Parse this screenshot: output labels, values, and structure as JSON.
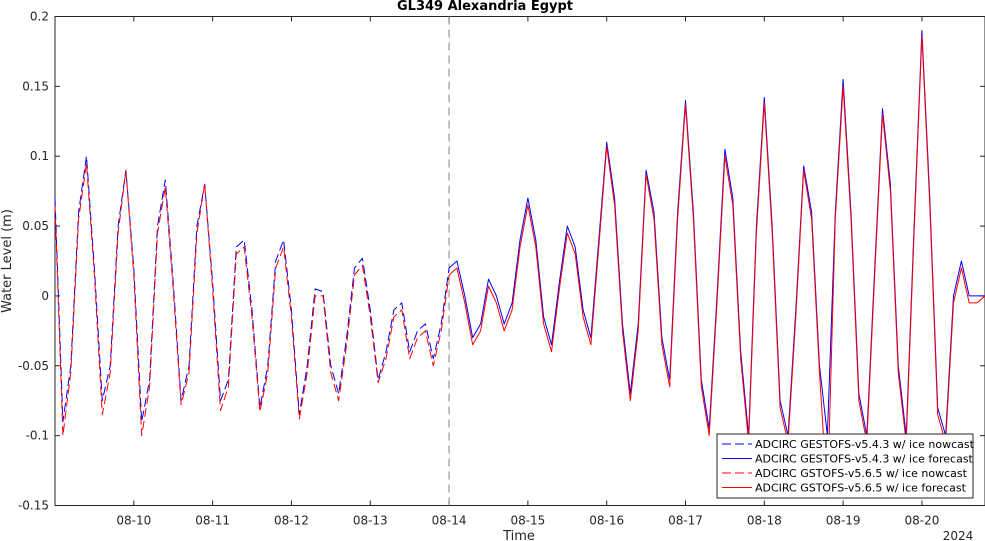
{
  "chart_data": {
    "type": "line",
    "title": "GL349 Alexandria Egypt",
    "xlabel": "Time",
    "ylabel": "Water Level (m)",
    "year_label": "2024",
    "xlim_days": [
      9.0,
      20.8
    ],
    "ylim": [
      -0.15,
      0.2
    ],
    "x_ticks": [
      {
        "day": 10,
        "label": "08-10"
      },
      {
        "day": 11,
        "label": "08-11"
      },
      {
        "day": 12,
        "label": "08-12"
      },
      {
        "day": 13,
        "label": "08-13"
      },
      {
        "day": 14,
        "label": "08-14"
      },
      {
        "day": 15,
        "label": "08-15"
      },
      {
        "day": 16,
        "label": "08-16"
      },
      {
        "day": 17,
        "label": "08-17"
      },
      {
        "day": 18,
        "label": "08-18"
      },
      {
        "day": 19,
        "label": "08-19"
      },
      {
        "day": 20,
        "label": "08-20"
      }
    ],
    "y_ticks": [
      {
        "value": 0.2,
        "label": "0.2"
      },
      {
        "value": 0.15,
        "label": "0.15"
      },
      {
        "value": 0.1,
        "label": "0.1"
      },
      {
        "value": 0.05,
        "label": "0.05"
      },
      {
        "value": 0,
        "label": "0"
      },
      {
        "value": -0.05,
        "label": "-0.05"
      },
      {
        "value": -0.1,
        "label": "-0.1"
      },
      {
        "value": -0.15,
        "label": "-0.15"
      }
    ],
    "nowcast_forecast_divider_day": 14.0,
    "grid": false,
    "legend_position": "bottom-right",
    "series": [
      {
        "name": "ADCIRC GESTOFS-v5.4.3 w/ ice nowcast",
        "color": "#0000ff",
        "style": "dashed",
        "x": [
          9.0,
          9.1,
          9.2,
          9.3,
          9.4,
          9.5,
          9.6,
          9.7,
          9.8,
          9.9,
          10.0,
          10.1,
          10.2,
          10.3,
          10.4,
          10.5,
          10.6,
          10.7,
          10.8,
          10.9,
          11.0,
          11.1,
          11.2,
          11.3,
          11.4,
          11.5,
          11.6,
          11.7,
          11.8,
          11.9,
          12.0,
          12.1,
          12.2,
          12.3,
          12.4,
          12.5,
          12.6,
          12.7,
          12.8,
          12.9,
          13.0,
          13.1,
          13.2,
          13.3,
          13.4,
          13.5,
          13.6,
          13.7,
          13.8,
          13.9,
          14.0
        ],
        "y": [
          0.07,
          -0.09,
          -0.05,
          0.06,
          0.1,
          0.02,
          -0.075,
          -0.05,
          0.05,
          0.09,
          0.02,
          -0.09,
          -0.06,
          0.05,
          0.083,
          0.01,
          -0.075,
          -0.05,
          0.05,
          0.08,
          0.01,
          -0.075,
          -0.06,
          0.035,
          0.04,
          -0.01,
          -0.08,
          -0.05,
          0.025,
          0.04,
          -0.01,
          -0.085,
          -0.05,
          0.005,
          0.003,
          -0.05,
          -0.07,
          -0.03,
          0.02,
          0.027,
          -0.01,
          -0.06,
          -0.04,
          -0.01,
          -0.005,
          -0.04,
          -0.025,
          -0.02,
          -0.045,
          -0.02,
          0.02
        ]
      },
      {
        "name": "ADCIRC GESTOFS-v5.4.3 w/ ice forecast",
        "color": "#0000ff",
        "style": "solid",
        "x": [
          14.0,
          14.1,
          14.2,
          14.3,
          14.4,
          14.5,
          14.6,
          14.7,
          14.8,
          14.9,
          15.0,
          15.1,
          15.2,
          15.3,
          15.4,
          15.5,
          15.6,
          15.7,
          15.8,
          15.9,
          16.0,
          16.1,
          16.2,
          16.3,
          16.4,
          16.5,
          16.6,
          16.7,
          16.8,
          16.9,
          17.0,
          17.1,
          17.2,
          17.3,
          17.4,
          17.5,
          17.6,
          17.7,
          17.8,
          17.9,
          18.0,
          18.1,
          18.2,
          18.3,
          18.4,
          18.5,
          18.6,
          18.7,
          18.8,
          18.9,
          19.0,
          19.1,
          19.2,
          19.3,
          19.4,
          19.5,
          19.6,
          19.7,
          19.8,
          19.9,
          20.0,
          20.1,
          20.2,
          20.3,
          20.4,
          20.5,
          20.6,
          20.7,
          20.8
        ],
        "y": [
          0.02,
          0.025,
          0.0,
          -0.03,
          -0.02,
          0.012,
          0.0,
          -0.02,
          -0.005,
          0.04,
          0.07,
          0.04,
          -0.015,
          -0.035,
          0.01,
          0.05,
          0.035,
          -0.01,
          -0.03,
          0.04,
          0.11,
          0.07,
          -0.02,
          -0.07,
          -0.02,
          0.09,
          0.06,
          -0.03,
          -0.06,
          0.06,
          0.14,
          0.06,
          -0.06,
          -0.095,
          0.0,
          0.105,
          0.07,
          -0.04,
          -0.1,
          0.05,
          0.142,
          0.05,
          -0.075,
          -0.1,
          -0.01,
          0.093,
          0.06,
          -0.05,
          -0.1,
          0.06,
          0.155,
          0.06,
          -0.07,
          -0.1,
          0.02,
          0.134,
          0.08,
          -0.05,
          -0.1,
          0.05,
          0.19,
          0.07,
          -0.08,
          -0.1,
          0.0,
          0.025,
          0.0,
          0.0,
          0.0
        ]
      },
      {
        "name": "ADCIRC GSTOFS-v5.6.5 w/ ice nowcast",
        "color": "#ff0000",
        "style": "dashed",
        "x": [
          9.0,
          9.1,
          9.2,
          9.3,
          9.4,
          9.5,
          9.6,
          9.7,
          9.8,
          9.9,
          10.0,
          10.1,
          10.2,
          10.3,
          10.4,
          10.5,
          10.6,
          10.7,
          10.8,
          10.9,
          11.0,
          11.1,
          11.2,
          11.3,
          11.4,
          11.5,
          11.6,
          11.7,
          11.8,
          11.9,
          12.0,
          12.1,
          12.2,
          12.3,
          12.4,
          12.5,
          12.6,
          12.7,
          12.8,
          12.9,
          13.0,
          13.1,
          13.2,
          13.3,
          13.4,
          13.5,
          13.6,
          13.7,
          13.8,
          13.9,
          14.0
        ],
        "y": [
          0.065,
          -0.1,
          -0.055,
          0.055,
          0.095,
          0.015,
          -0.085,
          -0.055,
          0.045,
          0.09,
          0.015,
          -0.1,
          -0.065,
          0.045,
          0.078,
          0.005,
          -0.078,
          -0.055,
          0.045,
          0.08,
          0.005,
          -0.082,
          -0.065,
          0.03,
          0.035,
          -0.015,
          -0.083,
          -0.055,
          0.02,
          0.035,
          -0.015,
          -0.088,
          -0.055,
          0.0,
          0.0,
          -0.055,
          -0.075,
          -0.035,
          0.015,
          0.022,
          -0.015,
          -0.062,
          -0.045,
          -0.015,
          -0.01,
          -0.045,
          -0.03,
          -0.025,
          -0.05,
          -0.025,
          0.015
        ]
      },
      {
        "name": "ADCIRC GSTOFS-v5.6.5 w/ ice forecast",
        "color": "#ff0000",
        "style": "solid",
        "x": [
          14.0,
          14.1,
          14.2,
          14.3,
          14.4,
          14.5,
          14.6,
          14.7,
          14.8,
          14.9,
          15.0,
          15.1,
          15.2,
          15.3,
          15.4,
          15.5,
          15.6,
          15.7,
          15.8,
          15.9,
          16.0,
          16.1,
          16.2,
          16.3,
          16.4,
          16.5,
          16.6,
          16.7,
          16.8,
          16.9,
          17.0,
          17.1,
          17.2,
          17.3,
          17.4,
          17.5,
          17.6,
          17.7,
          17.8,
          17.9,
          18.0,
          18.1,
          18.2,
          18.3,
          18.4,
          18.5,
          18.6,
          18.7,
          18.8,
          18.9,
          19.0,
          19.1,
          19.2,
          19.3,
          19.4,
          19.5,
          19.6,
          19.7,
          19.8,
          19.9,
          20.0,
          20.1,
          20.2,
          20.3,
          20.4,
          20.5,
          20.6,
          20.7,
          20.8
        ],
        "y": [
          0.015,
          0.02,
          -0.005,
          -0.035,
          -0.025,
          0.007,
          -0.005,
          -0.025,
          -0.01,
          0.035,
          0.065,
          0.035,
          -0.02,
          -0.04,
          0.005,
          0.045,
          0.03,
          -0.015,
          -0.035,
          0.035,
          0.107,
          0.065,
          -0.025,
          -0.075,
          -0.025,
          0.087,
          0.055,
          -0.035,
          -0.065,
          0.055,
          0.137,
          0.055,
          -0.065,
          -0.1,
          -0.005,
          0.1,
          0.065,
          -0.045,
          -0.105,
          0.045,
          0.138,
          0.045,
          -0.08,
          -0.105,
          -0.015,
          0.09,
          0.055,
          -0.055,
          -0.145,
          0.055,
          0.15,
          0.055,
          -0.075,
          -0.105,
          0.015,
          0.13,
          0.075,
          -0.055,
          -0.105,
          0.045,
          0.186,
          0.065,
          -0.085,
          -0.105,
          -0.005,
          0.02,
          -0.005,
          -0.005,
          0.0
        ]
      }
    ]
  }
}
